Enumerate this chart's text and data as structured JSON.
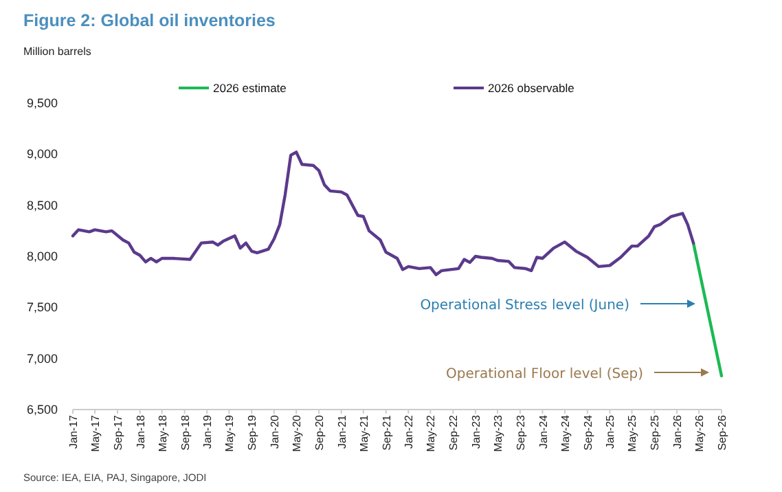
{
  "chart_data": {
    "type": "line",
    "title": "Figure 2: Global oil inventories",
    "ylabel": "Million barrels",
    "legend": "top",
    "grid": false,
    "marker": "none",
    "line_style": "solid",
    "xlim": [
      "2017-01",
      "2026-09"
    ],
    "ylim": [
      6500,
      9500
    ],
    "yticks": [
      {
        "value": 6500,
        "label": "6,500"
      },
      {
        "value": 7000,
        "label": "7,000"
      },
      {
        "value": 7500,
        "label": "7,500"
      },
      {
        "value": 8000,
        "label": "8,000"
      },
      {
        "value": 8500,
        "label": "8,500"
      },
      {
        "value": 9000,
        "label": "9,000"
      },
      {
        "value": 9500,
        "label": "9,500"
      }
    ],
    "xticks": [
      {
        "value": "2017-01",
        "label": "Jan-17"
      },
      {
        "value": "2017-05",
        "label": "May-17"
      },
      {
        "value": "2017-09",
        "label": "Sep-17"
      },
      {
        "value": "2018-01",
        "label": "Jan-18"
      },
      {
        "value": "2018-05",
        "label": "May-18"
      },
      {
        "value": "2018-09",
        "label": "Sep-18"
      },
      {
        "value": "2019-01",
        "label": "Jan-19"
      },
      {
        "value": "2019-05",
        "label": "May-19"
      },
      {
        "value": "2019-09",
        "label": "Sep-19"
      },
      {
        "value": "2020-01",
        "label": "Jan-20"
      },
      {
        "value": "2020-05",
        "label": "May-20"
      },
      {
        "value": "2020-09",
        "label": "Sep-20"
      },
      {
        "value": "2021-01",
        "label": "Jan-21"
      },
      {
        "value": "2021-05",
        "label": "May-21"
      },
      {
        "value": "2021-09",
        "label": "Sep-21"
      },
      {
        "value": "2022-01",
        "label": "Jan-22"
      },
      {
        "value": "2022-05",
        "label": "May-22"
      },
      {
        "value": "2022-09",
        "label": "Sep-22"
      },
      {
        "value": "2023-01",
        "label": "Jan-23"
      },
      {
        "value": "2023-05",
        "label": "May-23"
      },
      {
        "value": "2023-09",
        "label": "Sep-23"
      },
      {
        "value": "2024-01",
        "label": "Jan-24"
      },
      {
        "value": "2024-05",
        "label": "May-24"
      },
      {
        "value": "2024-09",
        "label": "Sep-24"
      },
      {
        "value": "2025-01",
        "label": "Jan-25"
      },
      {
        "value": "2025-05",
        "label": "May-25"
      },
      {
        "value": "2025-09",
        "label": "Sep-25"
      },
      {
        "value": "2026-01",
        "label": "Jan-26"
      },
      {
        "value": "2026-05",
        "label": "May-26"
      },
      {
        "value": "2026-09",
        "label": "Sep-26"
      }
    ],
    "series": [
      {
        "name": "2026 estimate",
        "color": "#1db954",
        "x": [
          "2026-04",
          "2026-09"
        ],
        "values": [
          8130,
          6830
        ]
      },
      {
        "name": "2026 observable",
        "color": "#5b3a8c",
        "x": [
          "2017-01",
          "2017-02",
          "2017-04",
          "2017-05",
          "2017-07",
          "2017-08",
          "2017-10",
          "2017-11",
          "2017-12",
          "2018-01",
          "2018-02",
          "2018-03",
          "2018-04",
          "2018-05",
          "2018-07",
          "2018-10",
          "2018-12",
          "2019-02",
          "2019-03",
          "2019-04",
          "2019-06",
          "2019-07",
          "2019-08",
          "2019-09",
          "2019-10",
          "2019-12",
          "2020-01",
          "2020-02",
          "2020-03",
          "2020-04",
          "2020-05",
          "2020-06",
          "2020-08",
          "2020-09",
          "2020-10",
          "2020-11",
          "2021-01",
          "2021-02",
          "2021-04",
          "2021-05",
          "2021-06",
          "2021-08",
          "2021-09",
          "2021-11",
          "2021-12",
          "2022-01",
          "2022-03",
          "2022-05",
          "2022-06",
          "2022-07",
          "2022-10",
          "2022-11",
          "2022-12",
          "2023-01",
          "2023-02",
          "2023-04",
          "2023-05",
          "2023-07",
          "2023-08",
          "2023-10",
          "2023-11",
          "2023-12",
          "2024-01",
          "2024-03",
          "2024-05",
          "2024-07",
          "2024-09",
          "2024-11",
          "2025-01",
          "2025-03",
          "2025-05",
          "2025-06",
          "2025-08",
          "2025-09",
          "2025-10",
          "2025-12",
          "2026-02",
          "2026-03",
          "2026-04"
        ],
        "values": [
          8200,
          8260,
          8240,
          8260,
          8240,
          8250,
          8160,
          8130,
          8040,
          8010,
          7945,
          7980,
          7945,
          7980,
          7980,
          7970,
          8130,
          8140,
          8110,
          8150,
          8200,
          8080,
          8130,
          8050,
          8035,
          8070,
          8170,
          8310,
          8600,
          8990,
          9020,
          8900,
          8890,
          8840,
          8700,
          8640,
          8630,
          8600,
          8400,
          8390,
          8250,
          8160,
          8040,
          7980,
          7870,
          7900,
          7880,
          7890,
          7820,
          7860,
          7880,
          7970,
          7940,
          8000,
          7990,
          7980,
          7960,
          7950,
          7890,
          7880,
          7860,
          7990,
          7980,
          8080,
          8140,
          8050,
          7990,
          7900,
          7910,
          7990,
          8100,
          8100,
          8200,
          8290,
          8310,
          8390,
          8420,
          8310,
          8130
        ]
      }
    ],
    "annotations": [
      "Operational Stress level (June)",
      "Operational Floor level (Sep)",
      "Source: IEA, EIA, PAJ, Singapore, JODI"
    ]
  }
}
